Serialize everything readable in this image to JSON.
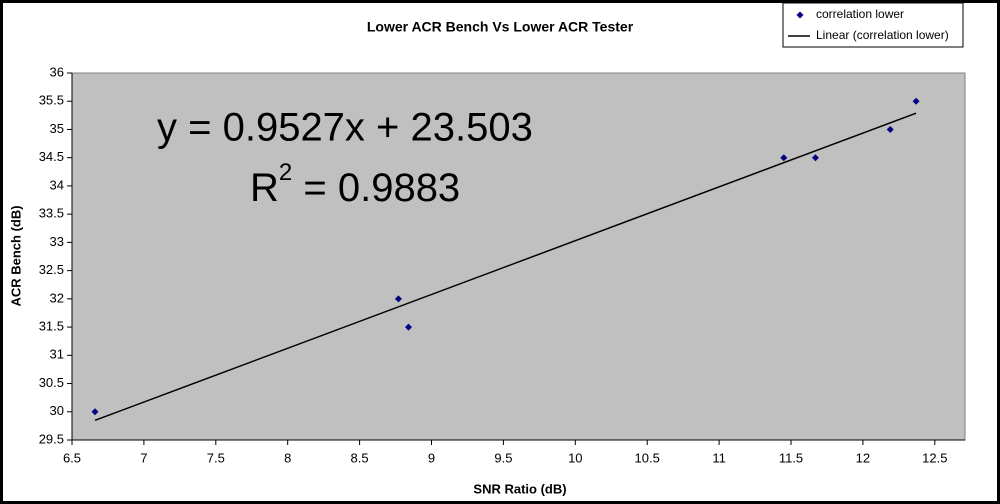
{
  "chart_data": {
    "type": "scatter",
    "title": "Lower ACR Bench Vs Lower ACR Tester",
    "x_label": "SNR Ratio (dB)",
    "y_label": "ACR Bench (dB)",
    "series": [
      {
        "name": "correlation lower",
        "color": "#000080",
        "x": [
          6.66,
          8.77,
          8.84,
          11.45,
          11.67,
          12.19,
          12.37
        ],
        "values": [
          30,
          32,
          31.5,
          34.5,
          34.5,
          35,
          35.5
        ]
      }
    ],
    "trendline": {
      "name": "Linear (correlation lower)",
      "color": "#000000",
      "slope": 0.9527,
      "intercept": 23.503
    },
    "equation": "y = 0.9527x + 23.503",
    "r2": {
      "label": "R",
      "sup": "2",
      "value": " = 0.9883"
    },
    "xlim": [
      6.5,
      12.71
    ],
    "xticks": [
      6.5,
      7,
      7.5,
      8,
      8.5,
      9,
      9.5,
      10,
      10.5,
      11,
      11.5,
      12,
      12.5
    ],
    "ylim": [
      29.5,
      36
    ],
    "yticks": [
      29.5,
      30,
      30.5,
      31,
      31.5,
      32,
      32.5,
      33,
      33.5,
      34,
      34.5,
      35,
      35.5,
      36
    ],
    "grid": false,
    "legend": "top-right",
    "plot_background": "#c0c0c0"
  }
}
